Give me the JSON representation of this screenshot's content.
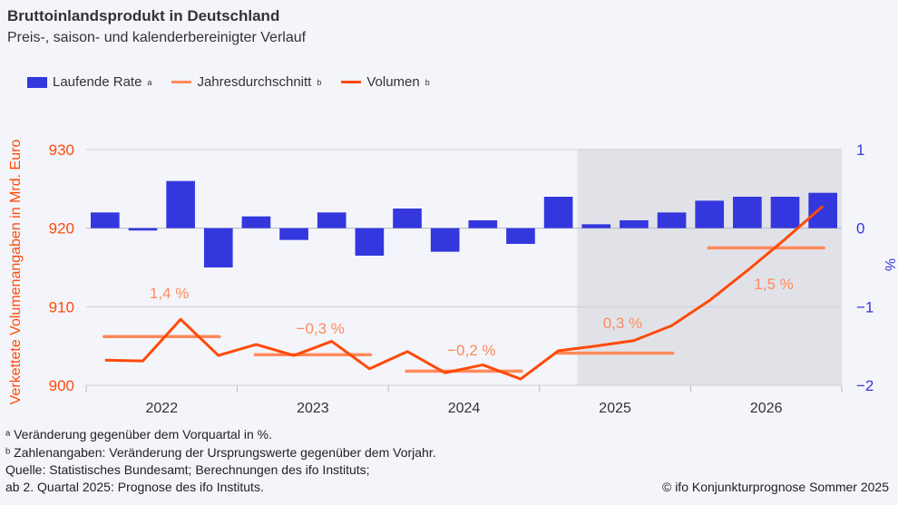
{
  "title": "Bruttoinlandsprodukt in Deutschland",
  "subtitle": "Preis-, saison- und kalenderbereinigter Verlauf",
  "legend": [
    {
      "label": "Laufende Rate",
      "sup": "a",
      "color": "#3337dd"
    },
    {
      "label": "Jahresdurchschnitt",
      "sup": "b",
      "color": "#ff8a5c"
    },
    {
      "label": "Volumen",
      "sup": "b",
      "color": "#ff4a0a"
    }
  ],
  "footnotes": [
    "ᵃ Veränderung gegenüber dem Vorquartal in %.",
    "ᵇ Zahlenangaben: Veränderung der Ursprungswerte gegenüber dem Vorjahr.",
    "Quelle: Statistisches Bundesamt; Berechnungen des ifo Instituts;",
    "ab 2. Quartal 2025: Prognose des ifo Instituts."
  ],
  "copyright": "© ifo Konjunkturprognose Sommer 2025",
  "chart_data": {
    "type": "bar+line",
    "ylabel_left": "Verkettete Volumenangaben in Mrd. Euro",
    "ylabel_right": "%",
    "ylim_left": [
      900,
      930
    ],
    "yticks_left": [
      "900",
      "910",
      "920",
      "930"
    ],
    "ylim_right": [
      -2,
      1
    ],
    "yticks_right": [
      "−2",
      "−1",
      "0",
      "1"
    ],
    "years": [
      "2022",
      "2023",
      "2024",
      "2025",
      "2026"
    ],
    "quarters": [
      "2022Q1",
      "2022Q2",
      "2022Q3",
      "2022Q4",
      "2023Q1",
      "2023Q2",
      "2023Q3",
      "2023Q4",
      "2024Q1",
      "2024Q2",
      "2024Q3",
      "2024Q4",
      "2025Q1",
      "2025Q2",
      "2025Q3",
      "2025Q4",
      "2026Q1",
      "2026Q2",
      "2026Q3",
      "2026Q4"
    ],
    "forecast_from": "2025Q2",
    "series": [
      {
        "name": "Laufende Rate",
        "axis": "right",
        "type": "bar",
        "color": "#3337dd",
        "values": [
          0.2,
          -0.03,
          0.6,
          -0.5,
          0.15,
          -0.15,
          0.2,
          -0.35,
          0.25,
          -0.3,
          0.1,
          -0.2,
          0.4,
          0.05,
          0.1,
          0.2,
          0.35,
          0.4,
          0.4,
          0.45
        ]
      },
      {
        "name": "Volumen",
        "axis": "left",
        "type": "line",
        "color": "#ff4a0a",
        "values": [
          903.2,
          903.1,
          908.4,
          903.8,
          905.2,
          903.8,
          905.6,
          902.1,
          904.3,
          901.6,
          902.6,
          900.8,
          904.4,
          905.0,
          905.7,
          907.6,
          910.8,
          914.6,
          918.6,
          922.8
        ]
      },
      {
        "name": "Jahresdurchschnitt",
        "axis": "left",
        "type": "step",
        "color": "#ff8a5c",
        "values": [
          906.2,
          903.9,
          901.8,
          904.1,
          917.5
        ],
        "labels": [
          "1,4 %",
          "−0,3 %",
          "−0,2 %",
          "0,3 %",
          "1,5 %"
        ]
      }
    ]
  }
}
